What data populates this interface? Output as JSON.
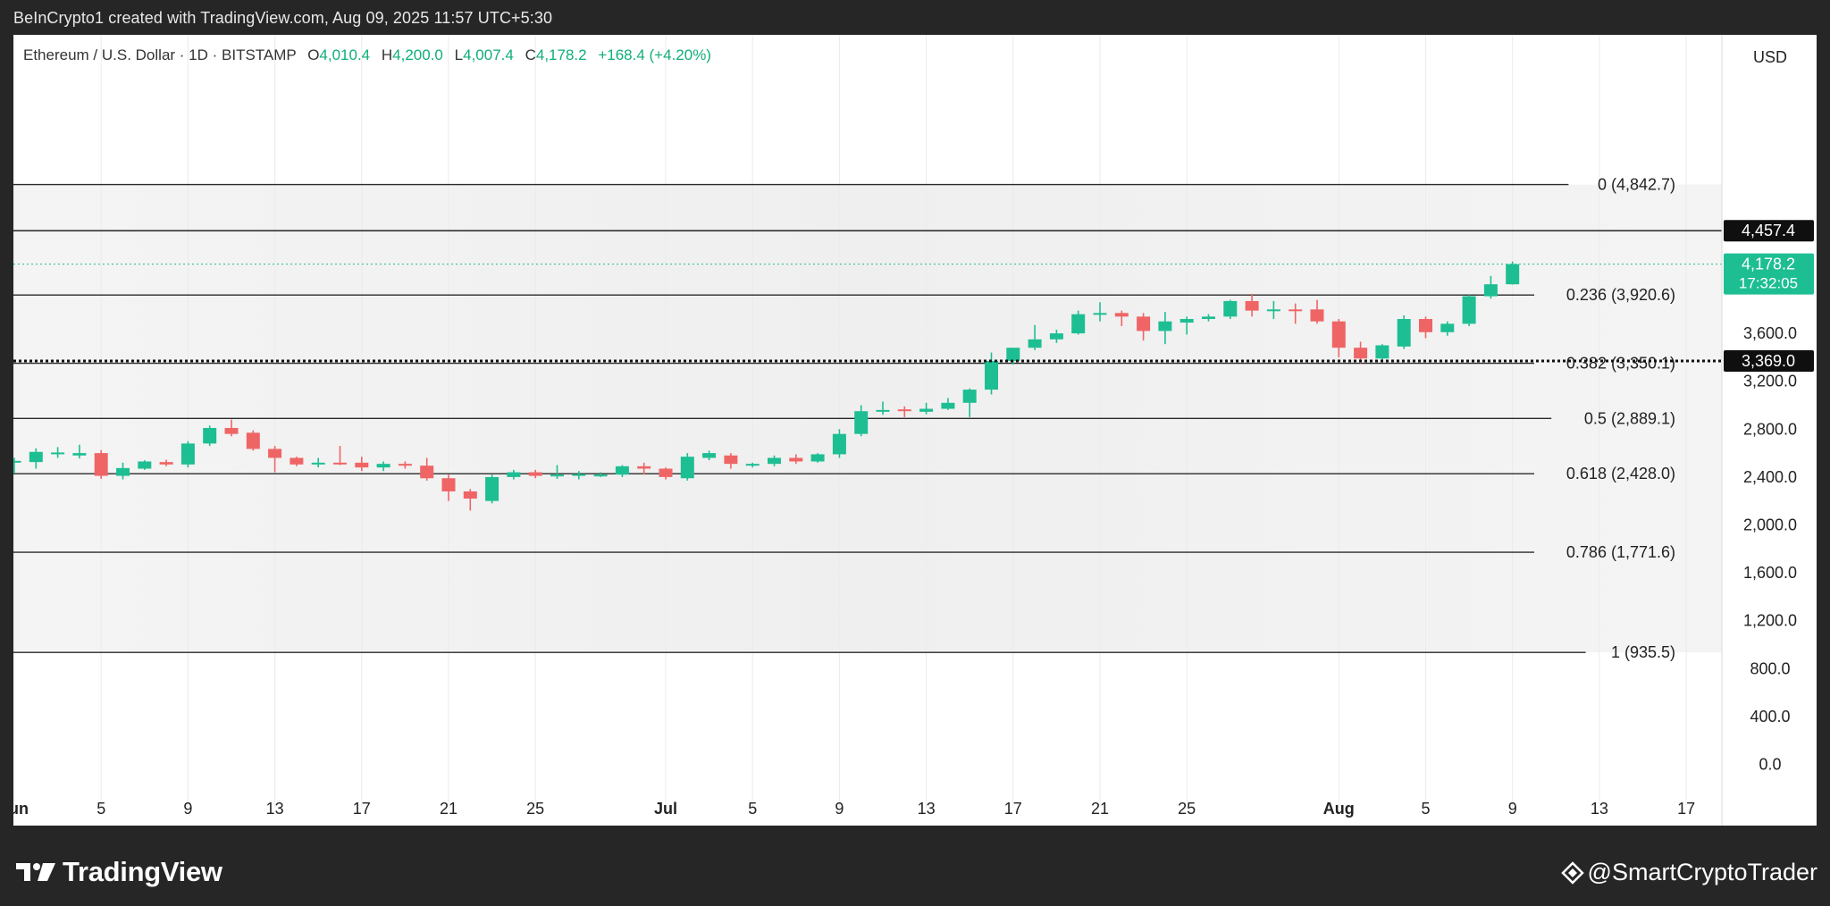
{
  "header": {
    "caption": "BeInCrypto1 created with TradingView.com, Aug 09, 2025 11:57 UTC+5:30"
  },
  "legend": {
    "symbol": "Ethereum / U.S. Dollar · 1D · BITSTAMP",
    "open_key": "O",
    "open": "4,010.4",
    "high_key": "H",
    "high": "4,200.0",
    "low_key": "L",
    "low": "4,007.4",
    "close_key": "C",
    "close": "4,178.2",
    "change": "+168.4 (+4.20%)"
  },
  "footer": {
    "brand": "TradingView",
    "author": "@SmartCryptoTrader"
  },
  "chart_data": {
    "type": "candlestick",
    "currency_label": "USD",
    "ylim": [
      -100,
      4900
    ],
    "y_ticks": [
      0,
      400,
      800,
      1200,
      1600,
      2000,
      2400,
      2800,
      3200,
      3600
    ],
    "y_tick_labels": [
      "0.0",
      "400.0",
      "800.0",
      "1,200.0",
      "1,600.0",
      "2,000.0",
      "2,400.0",
      "2,800.0",
      "3,200.0",
      "3,600.0"
    ],
    "x_labels": [
      {
        "day": 1,
        "label": "Jun"
      },
      {
        "day": 5,
        "label": "5"
      },
      {
        "day": 9,
        "label": "9"
      },
      {
        "day": 13,
        "label": "13"
      },
      {
        "day": 17,
        "label": "17"
      },
      {
        "day": 21,
        "label": "21"
      },
      {
        "day": 25,
        "label": "25"
      },
      {
        "day": 31,
        "label": "Jul"
      },
      {
        "day": 35,
        "label": "5"
      },
      {
        "day": 39,
        "label": "9"
      },
      {
        "day": 43,
        "label": "13"
      },
      {
        "day": 47,
        "label": "17"
      },
      {
        "day": 51,
        "label": "21"
      },
      {
        "day": 55,
        "label": "25"
      },
      {
        "day": 62,
        "label": "Aug"
      },
      {
        "day": 66,
        "label": "5"
      },
      {
        "day": 70,
        "label": "9"
      },
      {
        "day": 74,
        "label": "13"
      },
      {
        "day": 78,
        "label": "17"
      }
    ],
    "x_range": [
      1,
      80
    ],
    "fib_levels": [
      {
        "ratio": "0",
        "price": 4842.7,
        "label": "0 (4,842.7)"
      },
      {
        "ratio": "0.236",
        "price": 3920.6,
        "label": "0.236 (3,920.6)"
      },
      {
        "ratio": "0.382",
        "price": 3350.1,
        "label": "0.382 (3,350.1)"
      },
      {
        "ratio": "0.5",
        "price": 2889.1,
        "label": "0.5 (2,889.1)"
      },
      {
        "ratio": "0.618",
        "price": 2428.0,
        "label": "0.618 (2,428.0)"
      },
      {
        "ratio": "0.786",
        "price": 1771.6,
        "label": "0.786 (1,771.6)"
      },
      {
        "ratio": "1",
        "price": 935.5,
        "label": "1 (935.5)"
      }
    ],
    "horizontal_lines": [
      {
        "price": 4457.4,
        "label": "4,457.4",
        "style": "solid"
      },
      {
        "price": 3369.0,
        "label": "3,369.0",
        "style": "dotted"
      }
    ],
    "last_price": {
      "price": 4178.2,
      "label": "4,178.2",
      "countdown": "17:32:05"
    },
    "up_color": "#1ebe93",
    "down_color": "#ef6566",
    "candles": [
      {
        "day": 1,
        "o": 2520,
        "h": 2560,
        "l": 2430,
        "c": 2535
      },
      {
        "day": 2,
        "o": 2525,
        "h": 2640,
        "l": 2470,
        "c": 2610
      },
      {
        "day": 3,
        "o": 2590,
        "h": 2650,
        "l": 2560,
        "c": 2605
      },
      {
        "day": 4,
        "o": 2580,
        "h": 2670,
        "l": 2555,
        "c": 2600
      },
      {
        "day": 5,
        "o": 2600,
        "h": 2625,
        "l": 2385,
        "c": 2410
      },
      {
        "day": 6,
        "o": 2410,
        "h": 2520,
        "l": 2380,
        "c": 2475
      },
      {
        "day": 7,
        "o": 2470,
        "h": 2540,
        "l": 2460,
        "c": 2530
      },
      {
        "day": 8,
        "o": 2525,
        "h": 2545,
        "l": 2490,
        "c": 2505
      },
      {
        "day": 9,
        "o": 2505,
        "h": 2700,
        "l": 2480,
        "c": 2680
      },
      {
        "day": 10,
        "o": 2680,
        "h": 2830,
        "l": 2660,
        "c": 2810
      },
      {
        "day": 11,
        "o": 2810,
        "h": 2880,
        "l": 2740,
        "c": 2760
      },
      {
        "day": 12,
        "o": 2770,
        "h": 2790,
        "l": 2620,
        "c": 2635
      },
      {
        "day": 13,
        "o": 2635,
        "h": 2660,
        "l": 2440,
        "c": 2560
      },
      {
        "day": 14,
        "o": 2560,
        "h": 2570,
        "l": 2490,
        "c": 2505
      },
      {
        "day": 15,
        "o": 2505,
        "h": 2560,
        "l": 2480,
        "c": 2520
      },
      {
        "day": 16,
        "o": 2520,
        "h": 2660,
        "l": 2500,
        "c": 2515
      },
      {
        "day": 17,
        "o": 2520,
        "h": 2570,
        "l": 2450,
        "c": 2480
      },
      {
        "day": 18,
        "o": 2480,
        "h": 2530,
        "l": 2450,
        "c": 2510
      },
      {
        "day": 19,
        "o": 2510,
        "h": 2530,
        "l": 2470,
        "c": 2495
      },
      {
        "day": 20,
        "o": 2495,
        "h": 2560,
        "l": 2370,
        "c": 2390
      },
      {
        "day": 21,
        "o": 2390,
        "h": 2420,
        "l": 2200,
        "c": 2280
      },
      {
        "day": 22,
        "o": 2280,
        "h": 2300,
        "l": 2120,
        "c": 2220
      },
      {
        "day": 23,
        "o": 2200,
        "h": 2420,
        "l": 2180,
        "c": 2400
      },
      {
        "day": 24,
        "o": 2400,
        "h": 2460,
        "l": 2380,
        "c": 2440
      },
      {
        "day": 25,
        "o": 2440,
        "h": 2460,
        "l": 2390,
        "c": 2410
      },
      {
        "day": 26,
        "o": 2410,
        "h": 2500,
        "l": 2385,
        "c": 2420
      },
      {
        "day": 27,
        "o": 2420,
        "h": 2450,
        "l": 2380,
        "c": 2425
      },
      {
        "day": 28,
        "o": 2415,
        "h": 2440,
        "l": 2400,
        "c": 2420
      },
      {
        "day": 29,
        "o": 2420,
        "h": 2500,
        "l": 2400,
        "c": 2490
      },
      {
        "day": 30,
        "o": 2490,
        "h": 2520,
        "l": 2420,
        "c": 2470
      },
      {
        "day": 31,
        "o": 2470,
        "h": 2480,
        "l": 2380,
        "c": 2400
      },
      {
        "day": 32,
        "o": 2390,
        "h": 2600,
        "l": 2370,
        "c": 2570
      },
      {
        "day": 33,
        "o": 2560,
        "h": 2620,
        "l": 2540,
        "c": 2600
      },
      {
        "day": 34,
        "o": 2580,
        "h": 2600,
        "l": 2470,
        "c": 2510
      },
      {
        "day": 35,
        "o": 2500,
        "h": 2520,
        "l": 2480,
        "c": 2510
      },
      {
        "day": 36,
        "o": 2510,
        "h": 2580,
        "l": 2490,
        "c": 2560
      },
      {
        "day": 37,
        "o": 2560,
        "h": 2590,
        "l": 2510,
        "c": 2530
      },
      {
        "day": 38,
        "o": 2530,
        "h": 2600,
        "l": 2520,
        "c": 2590
      },
      {
        "day": 39,
        "o": 2590,
        "h": 2800,
        "l": 2560,
        "c": 2760
      },
      {
        "day": 40,
        "o": 2760,
        "h": 3000,
        "l": 2740,
        "c": 2950
      },
      {
        "day": 41,
        "o": 2950,
        "h": 3030,
        "l": 2920,
        "c": 2960
      },
      {
        "day": 42,
        "o": 2965,
        "h": 2990,
        "l": 2900,
        "c": 2955
      },
      {
        "day": 43,
        "o": 2945,
        "h": 3020,
        "l": 2925,
        "c": 2970
      },
      {
        "day": 44,
        "o": 2970,
        "h": 3060,
        "l": 2960,
        "c": 3020
      },
      {
        "day": 45,
        "o": 3020,
        "h": 3140,
        "l": 2900,
        "c": 3130
      },
      {
        "day": 46,
        "o": 3130,
        "h": 3440,
        "l": 3090,
        "c": 3370
      },
      {
        "day": 47,
        "o": 3370,
        "h": 3460,
        "l": 3340,
        "c": 3480
      },
      {
        "day": 48,
        "o": 3480,
        "h": 3670,
        "l": 3460,
        "c": 3550
      },
      {
        "day": 49,
        "o": 3550,
        "h": 3630,
        "l": 3520,
        "c": 3600
      },
      {
        "day": 50,
        "o": 3600,
        "h": 3790,
        "l": 3590,
        "c": 3760
      },
      {
        "day": 51,
        "o": 3760,
        "h": 3860,
        "l": 3700,
        "c": 3770
      },
      {
        "day": 52,
        "o": 3770,
        "h": 3790,
        "l": 3660,
        "c": 3740
      },
      {
        "day": 53,
        "o": 3740,
        "h": 3770,
        "l": 3540,
        "c": 3620
      },
      {
        "day": 54,
        "o": 3620,
        "h": 3780,
        "l": 3510,
        "c": 3700
      },
      {
        "day": 55,
        "o": 3690,
        "h": 3740,
        "l": 3590,
        "c": 3720
      },
      {
        "day": 56,
        "o": 3720,
        "h": 3760,
        "l": 3700,
        "c": 3740
      },
      {
        "day": 57,
        "o": 3740,
        "h": 3880,
        "l": 3720,
        "c": 3870
      },
      {
        "day": 58,
        "o": 3870,
        "h": 3930,
        "l": 3740,
        "c": 3790
      },
      {
        "day": 59,
        "o": 3790,
        "h": 3870,
        "l": 3720,
        "c": 3800
      },
      {
        "day": 60,
        "o": 3800,
        "h": 3850,
        "l": 3680,
        "c": 3790
      },
      {
        "day": 61,
        "o": 3800,
        "h": 3880,
        "l": 3680,
        "c": 3700
      },
      {
        "day": 62,
        "o": 3700,
        "h": 3720,
        "l": 3400,
        "c": 3480
      },
      {
        "day": 63,
        "o": 3480,
        "h": 3530,
        "l": 3350,
        "c": 3390
      },
      {
        "day": 64,
        "o": 3390,
        "h": 3510,
        "l": 3380,
        "c": 3500
      },
      {
        "day": 65,
        "o": 3490,
        "h": 3750,
        "l": 3470,
        "c": 3720
      },
      {
        "day": 66,
        "o": 3720,
        "h": 3740,
        "l": 3560,
        "c": 3610
      },
      {
        "day": 67,
        "o": 3610,
        "h": 3700,
        "l": 3580,
        "c": 3680
      },
      {
        "day": 68,
        "o": 3680,
        "h": 3920,
        "l": 3660,
        "c": 3910
      },
      {
        "day": 69,
        "o": 3910,
        "h": 4080,
        "l": 3890,
        "c": 4010
      },
      {
        "day": 70,
        "o": 4010,
        "h": 4200,
        "l": 4007,
        "c": 4178
      }
    ]
  }
}
